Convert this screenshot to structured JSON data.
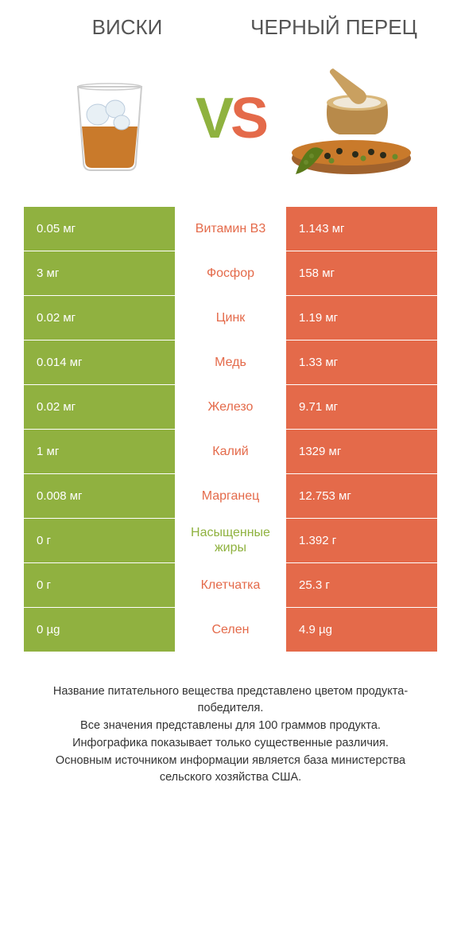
{
  "colors": {
    "left_bg": "#90b140",
    "right_bg": "#e46a4a",
    "mid_left": "#8fb23f",
    "mid_right": "#e46a4a",
    "text_white": "#ffffff"
  },
  "header": {
    "left_title": "ВИСКИ",
    "right_title": "ЧЕРНЫЙ ПЕРЕЦ",
    "vs_v": "V",
    "vs_s": "S"
  },
  "rows": [
    {
      "left": "0.05 мг",
      "mid": "Витамин B3",
      "right": "1.143 мг",
      "winner": "right"
    },
    {
      "left": "3 мг",
      "mid": "Фосфор",
      "right": "158 мг",
      "winner": "right"
    },
    {
      "left": "0.02 мг",
      "mid": "Цинк",
      "right": "1.19 мг",
      "winner": "right"
    },
    {
      "left": "0.014 мг",
      "mid": "Медь",
      "right": "1.33 мг",
      "winner": "right"
    },
    {
      "left": "0.02 мг",
      "mid": "Железо",
      "right": "9.71 мг",
      "winner": "right"
    },
    {
      "left": "1 мг",
      "mid": "Калий",
      "right": "1329 мг",
      "winner": "right"
    },
    {
      "left": "0.008 мг",
      "mid": "Марганец",
      "right": "12.753 мг",
      "winner": "right"
    },
    {
      "left": "0 г",
      "mid": "Насыщенные жиры",
      "right": "1.392 г",
      "winner": "left"
    },
    {
      "left": "0 г",
      "mid": "Клетчатка",
      "right": "25.3 г",
      "winner": "right"
    },
    {
      "left": "0 µg",
      "mid": "Селен",
      "right": "4.9 µg",
      "winner": "right"
    }
  ],
  "footer": {
    "line1": "Название питательного вещества представлено цветом продукта-победителя.",
    "line2": "Все значения представлены для 100 граммов продукта.",
    "line3": "Инфографика показывает только существенные различия.",
    "line4": "Основным источником информации является база министерства сельского хозяйства США."
  }
}
